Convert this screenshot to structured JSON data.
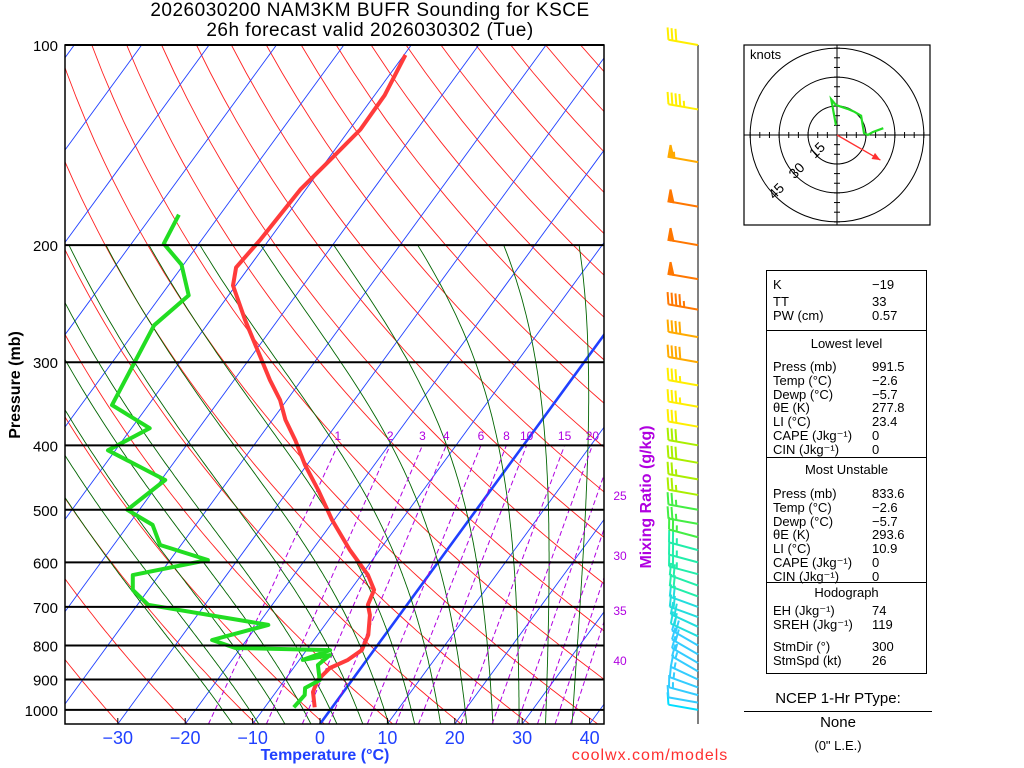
{
  "header": {
    "title_line1": "2026030200 NAM3KM BUFR Sounding for KSCE",
    "title_line2": "26h forecast valid 2026030302 (Tue)"
  },
  "footer": {
    "credit": "coolwx.com/models"
  },
  "colors": {
    "temperature": "#ff3b3b",
    "dewpoint": "#22dd22",
    "isotherm": "#2040ff",
    "dry_adiabat": "#ff2020",
    "moist_adiabat": "#006400",
    "mixing_ratio": "#b000e0",
    "storm_motion": "#ff3030"
  },
  "chart_data": {
    "type": "skew-t",
    "xlabel": "Temperature (°C)",
    "ylabel": "Pressure (mb)",
    "mixing_ratio_label": "Mixing Ratio (g/kg)",
    "x_ticks": [
      -30,
      -20,
      -10,
      0,
      10,
      20,
      30,
      40
    ],
    "p_ticks": [
      100,
      200,
      300,
      400,
      500,
      600,
      700,
      800,
      900,
      1000
    ],
    "mixing_ratio_top_labels": [
      1,
      2,
      3,
      4,
      6,
      8,
      10,
      15,
      20
    ],
    "mixing_ratio_side_labels": [
      25,
      30,
      35,
      40
    ],
    "temperature": [
      [
        991,
        -2.6
      ],
      [
        940,
        -4.5
      ],
      [
        902,
        -5.1
      ],
      [
        865,
        -4.6
      ],
      [
        841,
        -2.8
      ],
      [
        813,
        -1.8
      ],
      [
        771,
        -2.5
      ],
      [
        720,
        -4.4
      ],
      [
        695,
        -5.8
      ],
      [
        660,
        -6.5
      ],
      [
        627,
        -9.0
      ],
      [
        575,
        -14.4
      ],
      [
        518,
        -20.3
      ],
      [
        467,
        -25.6
      ],
      [
        428,
        -30.3
      ],
      [
        393,
        -34.4
      ],
      [
        366,
        -38.1
      ],
      [
        342,
        -41.0
      ],
      [
        319,
        -44.7
      ],
      [
        288,
        -49.7
      ],
      [
        259,
        -54.9
      ],
      [
        230,
        -60.4
      ],
      [
        216,
        -61.9
      ],
      [
        196,
        -61.3
      ],
      [
        165,
        -60.8
      ],
      [
        149,
        -59.6
      ],
      [
        134,
        -58.4
      ],
      [
        119,
        -58.5
      ],
      [
        103.5,
        -59.8
      ]
    ],
    "dewpoint": [
      [
        991,
        -5.7
      ],
      [
        950,
        -5.4
      ],
      [
        927,
        -6.1
      ],
      [
        902,
        -4.8
      ],
      [
        856,
        -6.7
      ],
      [
        827,
        -6.0
      ],
      [
        841,
        -9.5
      ],
      [
        813,
        -6.5
      ],
      [
        807,
        -20.8
      ],
      [
        785,
        -25.1
      ],
      [
        745,
        -18.4
      ],
      [
        695,
        -38.4
      ],
      [
        660,
        -42.3
      ],
      [
        627,
        -43.9
      ],
      [
        595,
        -34.4
      ],
      [
        565,
        -43.1
      ],
      [
        527,
        -46.4
      ],
      [
        500,
        -51.8
      ],
      [
        451,
        -49.4
      ],
      [
        407,
        -61.1
      ],
      [
        377,
        -57.3
      ],
      [
        348,
        -65.4
      ],
      [
        264,
        -67.8
      ],
      [
        238,
        -65.9
      ],
      [
        214,
        -70.3
      ],
      [
        199,
        -75.2
      ],
      [
        180,
        -76.1
      ]
    ],
    "wind_barbs": [
      [
        1000,
        280,
        10
      ],
      [
        975,
        280,
        12
      ],
      [
        950,
        285,
        14
      ],
      [
        925,
        290,
        15
      ],
      [
        900,
        295,
        15
      ],
      [
        875,
        300,
        16
      ],
      [
        850,
        300,
        17
      ],
      [
        825,
        300,
        18
      ],
      [
        800,
        300,
        20
      ],
      [
        775,
        295,
        20
      ],
      [
        750,
        295,
        20
      ],
      [
        725,
        290,
        21
      ],
      [
        700,
        290,
        22
      ],
      [
        675,
        290,
        22
      ],
      [
        650,
        290,
        22
      ],
      [
        625,
        285,
        23
      ],
      [
        600,
        285,
        24
      ],
      [
        575,
        285,
        25
      ],
      [
        550,
        285,
        25
      ],
      [
        525,
        280,
        26
      ],
      [
        500,
        280,
        26
      ],
      [
        475,
        280,
        27
      ],
      [
        450,
        280,
        27
      ],
      [
        425,
        280,
        28
      ],
      [
        400,
        280,
        30
      ],
      [
        375,
        280,
        32
      ],
      [
        350,
        280,
        35
      ],
      [
        325,
        280,
        37
      ],
      [
        300,
        280,
        38
      ],
      [
        275,
        280,
        42
      ],
      [
        250,
        280,
        45
      ],
      [
        225,
        280,
        48
      ],
      [
        200,
        280,
        50
      ],
      [
        175,
        280,
        52
      ],
      [
        150,
        280,
        55
      ],
      [
        125,
        280,
        45
      ],
      [
        100,
        280,
        30
      ]
    ]
  },
  "hodograph": {
    "units_label": "knots",
    "ring_labels": [
      "15",
      "30",
      "45"
    ],
    "trace_uv": [
      [
        -0.5,
        5
      ],
      [
        -3,
        18.5
      ],
      [
        -0.5,
        15.5
      ],
      [
        5.5,
        13.5
      ],
      [
        9,
        12
      ],
      [
        12.5,
        10
      ],
      [
        14,
        1
      ],
      [
        16,
        0
      ],
      [
        18.5,
        1.5
      ],
      [
        24,
        3.5
      ]
    ],
    "storm_motion_uv": [
      22.5,
      -13
    ]
  },
  "stats": {
    "k": {
      "label": "K",
      "value": "−19"
    },
    "tt": {
      "label": "TT",
      "value": "33"
    },
    "pw": {
      "label": "PW (cm)",
      "value": "0.57"
    },
    "lowest": {
      "title": "Lowest level",
      "rows": [
        {
          "label": "Press (mb)",
          "value": "991.5"
        },
        {
          "label": "Temp (°C)",
          "value": "−2.6"
        },
        {
          "label": "Dewp (°C)",
          "value": "−5.7"
        },
        {
          "label": "θE (K)",
          "value": "277.8"
        },
        {
          "label": "LI (°C)",
          "value": "23.4"
        },
        {
          "label": "CAPE (Jkg⁻¹)",
          "value": "0"
        },
        {
          "label": "CIN (Jkg⁻¹)",
          "value": "0"
        }
      ]
    },
    "unstable": {
      "title": "Most Unstable",
      "rows": [
        {
          "label": "Press (mb)",
          "value": "833.6"
        },
        {
          "label": "Temp (°C)",
          "value": "−2.6"
        },
        {
          "label": "Dewp (°C)",
          "value": "−5.7"
        },
        {
          "label": "θE (K)",
          "value": "293.6"
        },
        {
          "label": "LI (°C)",
          "value": "10.9"
        },
        {
          "label": "CAPE (Jkg⁻¹)",
          "value": "0"
        },
        {
          "label": "CIN (Jkg⁻¹)",
          "value": "0"
        }
      ]
    },
    "hodo": {
      "title": "Hodograph",
      "rows": [
        {
          "label": "EH (Jkg⁻¹)",
          "value": "74"
        },
        {
          "label": "SREH (Jkg⁻¹)",
          "value": "119"
        },
        {
          "label": "StmDir (°)",
          "value": "300"
        },
        {
          "label": "StmSpd (kt)",
          "value": "26"
        }
      ]
    }
  },
  "ptype": {
    "title": "NCEP 1-Hr PType:",
    "value": "None",
    "accum": "(0\" L.E.)"
  }
}
